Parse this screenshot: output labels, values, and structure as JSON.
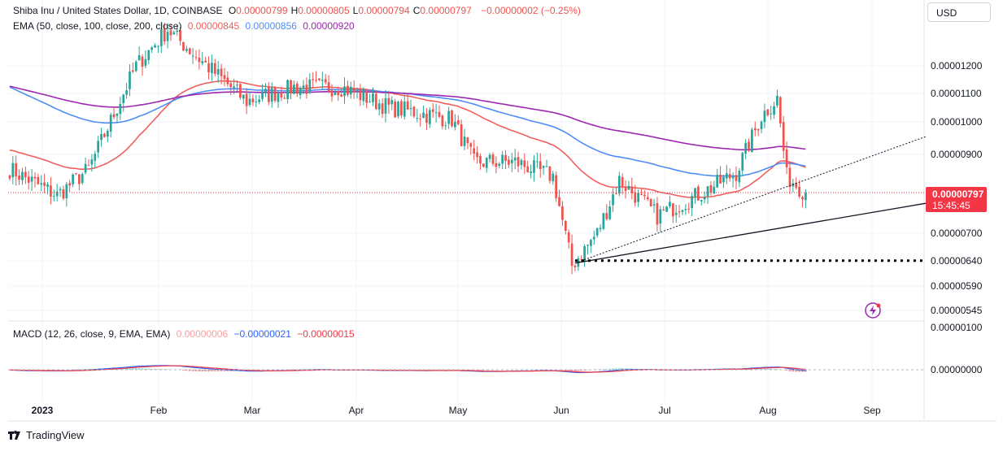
{
  "header": {
    "symbol": "Shiba Inu / United States Dollar, 1D, COINBASE",
    "ohlc": [
      {
        "k": "O",
        "v": "0.00000799"
      },
      {
        "k": "H",
        "v": "0.00000805"
      },
      {
        "k": "L",
        "v": "0.00000794"
      },
      {
        "k": "C",
        "v": "0.00000797"
      }
    ],
    "change": "−0.00000002 (−0.25%)",
    "ema_label": "EMA (50, close, 100, close, 200, close)",
    "ema_values": [
      "0.00000845",
      "0.00000856",
      "0.00000920"
    ],
    "currency": "USD",
    "macd_label": "MACD (12, 26, close, 9, EMA, EMA)",
    "macd_values": [
      "0.00000006",
      "−0.00000021",
      "−0.00000015"
    ]
  },
  "colors": {
    "up": "#26a69a",
    "down": "#ef5350",
    "ema50": "#f0605f",
    "ema100": "#4f8df5",
    "ema200": "#9c27b0",
    "macd": "#2962ff",
    "signal": "#f23645",
    "hist_up": "#9fd5cf",
    "hist_down": "#f29090",
    "trend_solid": "#131722",
    "support": "#000000"
  },
  "price_badge": {
    "price": "0.00000797",
    "countdown": "15:45:45"
  },
  "footer": {
    "brand": "TradingView"
  },
  "icons": {
    "alert": "lightning-alert-icon",
    "logo": "tradingview-logo-icon"
  },
  "chart_data": {
    "type": "candlestick",
    "title": "Shiba Inu / United States Dollar, 1D, COINBASE",
    "x_ticks": [
      "2023",
      "Feb",
      "Mar",
      "Apr",
      "May",
      "Jun",
      "Jul",
      "Aug",
      "Sep"
    ],
    "y_ticks": [
      "0.00001200",
      "0.00001100",
      "0.00001000",
      "0.00000900",
      "0.00000700",
      "0.00000640",
      "0.00000590",
      "0.00000545"
    ],
    "macd_ticks": [
      "0.00000100",
      "0.00000000"
    ],
    "price_scale": "log",
    "grid": true,
    "key_prices": {
      "last_close": 7.97e-06,
      "support_level": 6.4e-06,
      "low": 5.98e-06,
      "high": 1.37e-05
    },
    "ema": {
      "periods": [
        50,
        100,
        200
      ],
      "last": [
        8.45e-06,
        8.56e-06,
        9.2e-06
      ]
    },
    "macd": {
      "params": "12, 26, 9",
      "hist": 6e-08,
      "macd": -2.1e-07,
      "signal": -1.5e-07
    },
    "trendlines": [
      "dotted rising line from Jun low",
      "solid rising line from Jun low",
      "dotted horizontal support at 0.0000064"
    ],
    "anchors": [
      {
        "t": 0,
        "v": 8.6e-06
      },
      {
        "t": 15,
        "v": 7.9e-06
      },
      {
        "t": 25,
        "v": 8.6e-06
      },
      {
        "t": 40,
        "v": 1.2e-05
      },
      {
        "t": 50,
        "v": 1.35e-05
      },
      {
        "t": 58,
        "v": 1.25e-05
      },
      {
        "t": 75,
        "v": 1.07e-05
      },
      {
        "t": 90,
        "v": 1.12e-05
      },
      {
        "t": 105,
        "v": 1.12e-05
      },
      {
        "t": 120,
        "v": 1.05e-05
      },
      {
        "t": 140,
        "v": 1.01e-05
      },
      {
        "t": 147,
        "v": 8.8e-06
      },
      {
        "t": 160,
        "v": 8.8e-06
      },
      {
        "t": 172,
        "v": 8.4e-06
      },
      {
        "t": 178,
        "v": 6.3e-06
      },
      {
        "t": 186,
        "v": 7e-06
      },
      {
        "t": 193,
        "v": 8.3e-06
      },
      {
        "t": 205,
        "v": 7.4e-06
      },
      {
        "t": 220,
        "v": 8e-06
      },
      {
        "t": 230,
        "v": 8.5e-06
      },
      {
        "t": 238,
        "v": 1.02e-05
      },
      {
        "t": 243,
        "v": 1.08e-05
      },
      {
        "t": 246,
        "v": 8.4e-06
      },
      {
        "t": 252,
        "v": 7.97e-06
      }
    ]
  }
}
